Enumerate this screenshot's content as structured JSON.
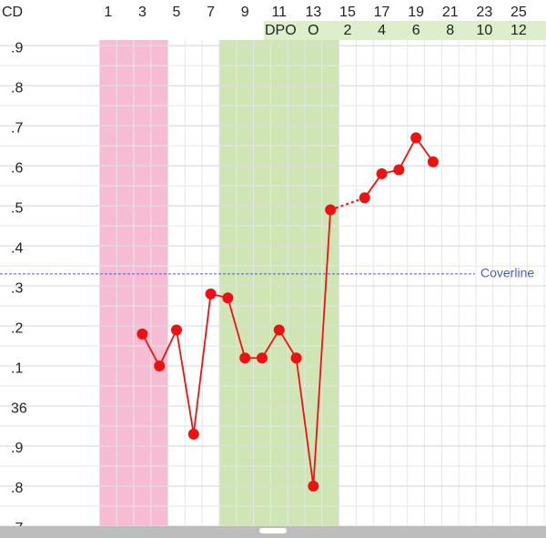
{
  "chart_data": {
    "type": "line",
    "x_axis_label": "CD",
    "x": [
      3,
      4,
      5,
      6,
      7,
      8,
      9,
      10,
      11,
      12,
      13,
      14,
      15,
      16,
      17,
      18,
      19,
      20
    ],
    "values": [
      36.18,
      36.1,
      36.19,
      35.93,
      36.28,
      36.27,
      36.12,
      36.12,
      36.19,
      36.12,
      35.8,
      36.49,
      null,
      36.52,
      36.58,
      36.59,
      36.67,
      36.61
    ],
    "color": "#ee1111",
    "xlim": [
      0,
      26.6
    ],
    "xticks": [
      1,
      3,
      5,
      7,
      9,
      11,
      13,
      15,
      17,
      19,
      21,
      23,
      25
    ],
    "ylim": [
      35.7,
      36.914
    ],
    "yticks": [
      {
        "value": 36.9,
        "label": ".9"
      },
      {
        "value": 36.8,
        "label": ".8"
      },
      {
        "value": 36.7,
        "label": ".7"
      },
      {
        "value": 36.6,
        "label": ".6"
      },
      {
        "value": 36.5,
        "label": ".5"
      },
      {
        "value": 36.4,
        "label": ".4"
      },
      {
        "value": 36.3,
        "label": ".3"
      },
      {
        "value": 36.2,
        "label": ".2"
      },
      {
        "value": 36.1,
        "label": ".1"
      },
      36,
      {
        "value": 35.9,
        "label": ".9"
      },
      {
        "value": 35.8,
        "label": ".8"
      },
      {
        "value": 35.7,
        "label": ".7"
      }
    ],
    "grid": true,
    "dpo_label": "DPO",
    "dpo_ticks": [
      {
        "value": 13,
        "label": "O"
      },
      {
        "value": 15,
        "label": "2"
      },
      {
        "value": 17,
        "label": "4"
      },
      {
        "value": 19,
        "label": "6"
      },
      {
        "value": 21,
        "label": "8"
      },
      {
        "value": 23,
        "label": "10"
      },
      {
        "value": 25,
        "label": "12"
      }
    ],
    "shaded_ranges": [
      {
        "from": 0.5,
        "to": 4.5,
        "color": "#f5bcd3"
      },
      {
        "from": 7.5,
        "to": 14.5,
        "color": "#cfe6b4"
      }
    ],
    "coverline": {
      "label": "Coverline",
      "value": 36.33,
      "color": "#4a5bd0"
    }
  }
}
